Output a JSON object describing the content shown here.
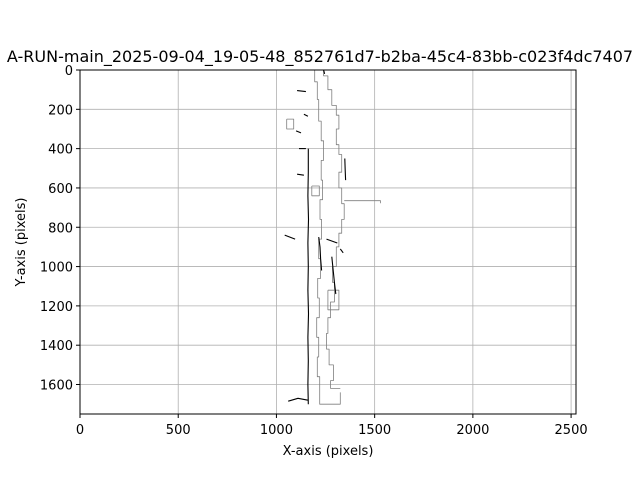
{
  "chart_data": {
    "type": "line",
    "title": "A-RUN-main_2025-09-04_19-05-48_852761d7-b2ba-45c4-83bb-c023f4dc7407",
    "xlabel": "X-axis (pixels)",
    "ylabel": "Y-axis (pixels)",
    "xlim": [
      0,
      2525
    ],
    "ylim": [
      1750,
      0
    ],
    "y_inverted": true,
    "grid": true,
    "x_ticks": [
      0,
      500,
      1000,
      1500,
      2000,
      2500
    ],
    "y_ticks": [
      0,
      200,
      400,
      600,
      800,
      1000,
      1200,
      1400,
      1600
    ],
    "series": [
      {
        "color": "#7f7f7f",
        "points": [
          [
            1195,
            0
          ],
          [
            1195,
            60
          ],
          [
            1208,
            60
          ],
          [
            1208,
            150
          ],
          [
            1215,
            150
          ],
          [
            1215,
            260
          ],
          [
            1228,
            260
          ],
          [
            1228,
            360
          ],
          [
            1240,
            360
          ],
          [
            1240,
            460
          ],
          [
            1228,
            460
          ],
          [
            1228,
            560
          ],
          [
            1235,
            560
          ],
          [
            1235,
            660
          ],
          [
            1222,
            660
          ],
          [
            1222,
            760
          ],
          [
            1230,
            760
          ],
          [
            1230,
            860
          ],
          [
            1215,
            860
          ],
          [
            1215,
            960
          ],
          [
            1225,
            960
          ],
          [
            1225,
            1060
          ],
          [
            1210,
            1060
          ],
          [
            1210,
            1160
          ],
          [
            1218,
            1160
          ],
          [
            1218,
            1260
          ],
          [
            1205,
            1260
          ],
          [
            1205,
            1360
          ],
          [
            1215,
            1360
          ],
          [
            1215,
            1460
          ],
          [
            1208,
            1460
          ],
          [
            1208,
            1560
          ],
          [
            1220,
            1560
          ],
          [
            1220,
            1700
          ],
          [
            1325,
            1700
          ],
          [
            1325,
            1640
          ]
        ]
      },
      {
        "color": "#7f7f7f",
        "points": [
          [
            1240,
            0
          ],
          [
            1240,
            30
          ],
          [
            1262,
            30
          ],
          [
            1262,
            100
          ],
          [
            1282,
            100
          ],
          [
            1282,
            180
          ],
          [
            1305,
            180
          ],
          [
            1305,
            230
          ],
          [
            1318,
            230
          ],
          [
            1318,
            300
          ],
          [
            1305,
            300
          ],
          [
            1305,
            380
          ],
          [
            1318,
            380
          ],
          [
            1318,
            430
          ],
          [
            1332,
            430
          ],
          [
            1332,
            520
          ],
          [
            1318,
            520
          ],
          [
            1318,
            600
          ],
          [
            1332,
            600
          ],
          [
            1332,
            680
          ],
          [
            1345,
            680
          ],
          [
            1345,
            760
          ],
          [
            1332,
            760
          ],
          [
            1332,
            830
          ],
          [
            1318,
            830
          ],
          [
            1318,
            900
          ],
          [
            1305,
            900
          ],
          [
            1305,
            1000
          ],
          [
            1285,
            1000
          ],
          [
            1285,
            1080
          ],
          [
            1295,
            1080
          ],
          [
            1295,
            1180
          ],
          [
            1275,
            1180
          ],
          [
            1275,
            1260
          ],
          [
            1262,
            1260
          ],
          [
            1262,
            1340
          ],
          [
            1255,
            1340
          ],
          [
            1255,
            1420
          ],
          [
            1268,
            1420
          ],
          [
            1268,
            1500
          ],
          [
            1290,
            1500
          ],
          [
            1290,
            1580
          ],
          [
            1275,
            1580
          ],
          [
            1275,
            1620
          ],
          [
            1325,
            1620
          ]
        ]
      },
      {
        "color": "#7f7f7f",
        "points": [
          [
            1262,
            1120
          ],
          [
            1318,
            1120
          ],
          [
            1318,
            1220
          ],
          [
            1262,
            1220
          ],
          [
            1262,
            1120
          ]
        ]
      },
      {
        "color": "#7f7f7f",
        "points": [
          [
            1052,
            250
          ],
          [
            1088,
            250
          ],
          [
            1088,
            300
          ],
          [
            1052,
            300
          ],
          [
            1052,
            250
          ]
        ]
      },
      {
        "color": "#7f7f7f",
        "points": [
          [
            1180,
            590
          ],
          [
            1218,
            590
          ],
          [
            1218,
            640
          ],
          [
            1180,
            640
          ],
          [
            1180,
            590
          ]
        ]
      },
      {
        "color": "#7f7f7f",
        "points": [
          [
            1345,
            665
          ],
          [
            1530,
            665
          ],
          [
            1530,
            678
          ]
        ]
      },
      {
        "color": "#000000",
        "points": [
          [
            1162,
            400
          ],
          [
            1162,
            520
          ],
          [
            1160,
            640
          ],
          [
            1163,
            760
          ],
          [
            1160,
            880
          ],
          [
            1162,
            1000
          ],
          [
            1160,
            1120
          ],
          [
            1163,
            1240
          ],
          [
            1160,
            1360
          ],
          [
            1162,
            1480
          ],
          [
            1160,
            1600
          ],
          [
            1162,
            1700
          ]
        ]
      },
      {
        "color": "#000000",
        "points": [
          [
            1348,
            450
          ],
          [
            1350,
            510
          ],
          [
            1352,
            560
          ]
        ]
      },
      {
        "color": "#000000",
        "points": [
          [
            1215,
            850
          ],
          [
            1222,
            900
          ],
          [
            1225,
            960
          ],
          [
            1230,
            1020
          ]
        ]
      },
      {
        "color": "#000000",
        "points": [
          [
            1282,
            950
          ],
          [
            1288,
            1010
          ],
          [
            1295,
            1080
          ],
          [
            1302,
            1140
          ]
        ]
      },
      {
        "color": "#000000",
        "points": [
          [
            1060,
            1685
          ],
          [
            1110,
            1670
          ],
          [
            1160,
            1680
          ]
        ]
      },
      {
        "color": "#000000",
        "points": [
          [
            1100,
            310
          ],
          [
            1125,
            320
          ]
        ]
      },
      {
        "color": "#000000",
        "points": [
          [
            1042,
            840
          ],
          [
            1095,
            860
          ]
        ]
      },
      {
        "color": "#000000",
        "points": [
          [
            1255,
            860
          ],
          [
            1310,
            880
          ]
        ]
      },
      {
        "color": "#000000",
        "points": [
          [
            1325,
            910
          ],
          [
            1340,
            930
          ]
        ]
      },
      {
        "color": "#000000",
        "points": [
          [
            1105,
            105
          ],
          [
            1150,
            110
          ]
        ]
      },
      {
        "color": "#000000",
        "points": [
          [
            1140,
            225
          ],
          [
            1160,
            235
          ]
        ]
      },
      {
        "color": "#000000",
        "points": [
          [
            1115,
            400
          ],
          [
            1150,
            400
          ]
        ]
      },
      {
        "color": "#000000",
        "points": [
          [
            1105,
            530
          ],
          [
            1140,
            535
          ]
        ]
      },
      {
        "color": "#000000",
        "points": [
          [
            1240,
            0
          ],
          [
            1245,
            20
          ]
        ]
      }
    ]
  }
}
